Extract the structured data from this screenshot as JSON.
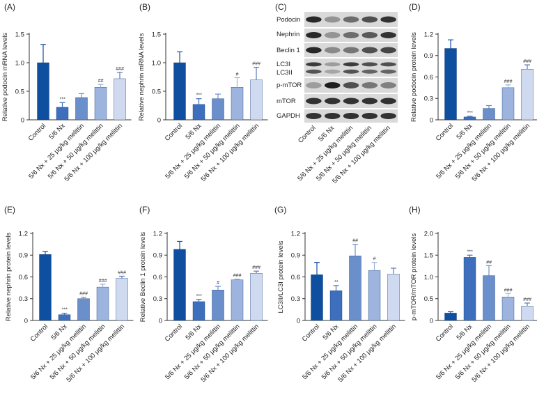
{
  "chart_data": [
    {
      "panel": "(A)",
      "type": "bar",
      "ylabel": "Relative podocin mRNA levels",
      "ylim": [
        0,
        1.5
      ],
      "yticks": [
        "0",
        "0.5",
        "1.0",
        "1.5"
      ],
      "categories": [
        "Control",
        "5/6 Nx",
        "5/6 Nx + 25 μg/kg melittin",
        "5/6 Nx + 50 μg/kg melittin",
        "5/6 Nx + 100 μg/kg melittin"
      ],
      "values": [
        1.0,
        0.22,
        0.39,
        0.57,
        0.72
      ],
      "errors": [
        0.32,
        0.08,
        0.07,
        0.05,
        0.11
      ],
      "significance": [
        "",
        "***",
        "",
        "##",
        "###"
      ],
      "colors": [
        "#0f4fa0",
        "#3e6fbd",
        "#6a8fcb",
        "#9cb4de",
        "#cfdaf0"
      ]
    },
    {
      "panel": "(B)",
      "type": "bar",
      "ylabel": "Relative nephrin mRNA levels",
      "ylim": [
        0,
        1.5
      ],
      "yticks": [
        "0",
        "0.5",
        "1.0",
        "1.5"
      ],
      "categories": [
        "Control",
        "5/6 Nx",
        "5/6 Nx + 25 μg/kg melittin",
        "5/6 Nx + 50 μg/kg melittin",
        "5/6 Nx + 100 μg/kg melittin"
      ],
      "values": [
        1.0,
        0.27,
        0.37,
        0.57,
        0.7
      ],
      "errors": [
        0.19,
        0.1,
        0.08,
        0.17,
        0.22
      ],
      "significance": [
        "",
        "***",
        "",
        "#",
        "###"
      ],
      "colors": [
        "#0f4fa0",
        "#3e6fbd",
        "#6a8fcb",
        "#9cb4de",
        "#cfdaf0"
      ]
    },
    {
      "panel": "(D)",
      "type": "bar",
      "ylabel": "Relative podocin protein levels",
      "ylim": [
        0,
        1.2
      ],
      "yticks": [
        "0",
        "0.3",
        "0.6",
        "0.9",
        "1.2"
      ],
      "categories": [
        "Control",
        "5/6 Nx",
        "5/6 Nx + 25 μg/kg melittin",
        "5/6 Nx + 50 μg/kg melittin",
        "5/6 Nx + 100 μg/kg melittin"
      ],
      "values": [
        1.0,
        0.04,
        0.16,
        0.45,
        0.71
      ],
      "errors": [
        0.12,
        0.01,
        0.04,
        0.04,
        0.06
      ],
      "significance": [
        "",
        "***",
        "",
        "###",
        "###"
      ],
      "colors": [
        "#0f4fa0",
        "#3e6fbd",
        "#6a8fcb",
        "#9cb4de",
        "#cfdaf0"
      ]
    },
    {
      "panel": "(E)",
      "type": "bar",
      "ylabel": "Relative nephrin protein levels",
      "ylim": [
        0,
        1.2
      ],
      "yticks": [
        "0",
        "0.3",
        "0.6",
        "0.9",
        "1.2"
      ],
      "categories": [
        "Control",
        "5/6 Nx",
        "5/6 Nx + 25 μg/kg melittin",
        "5/6 Nx + 50 μg/kg melittin",
        "5/6 Nx + 100 μg/kg melittin"
      ],
      "values": [
        0.91,
        0.08,
        0.3,
        0.46,
        0.58
      ],
      "errors": [
        0.04,
        0.02,
        0.02,
        0.04,
        0.03
      ],
      "significance": [
        "",
        "***",
        "###",
        "###",
        "###"
      ],
      "colors": [
        "#0f4fa0",
        "#3e6fbd",
        "#6a8fcb",
        "#9cb4de",
        "#cfdaf0"
      ]
    },
    {
      "panel": "(F)",
      "type": "bar",
      "ylabel": "Relative Beclin 1 protein levels",
      "ylim": [
        0,
        1.2
      ],
      "yticks": [
        "0",
        "0.3",
        "0.6",
        "0.9",
        "1.2"
      ],
      "categories": [
        "Control",
        "5/6 Nx",
        "5/6 Nx + 25 μg/kg melittin",
        "5/6 Nx + 50 μg/kg melittin",
        "5/6 Nx + 100 μg/kg melittin"
      ],
      "values": [
        0.98,
        0.26,
        0.42,
        0.56,
        0.65
      ],
      "errors": [
        0.11,
        0.03,
        0.05,
        0.01,
        0.03
      ],
      "significance": [
        "",
        "***",
        "#",
        "###",
        "###"
      ],
      "colors": [
        "#0f4fa0",
        "#3e6fbd",
        "#6a8fcb",
        "#9cb4de",
        "#cfdaf0"
      ]
    },
    {
      "panel": "(G)",
      "type": "bar",
      "ylabel": "LC3II/LC3I protein levels",
      "ylim": [
        0,
        1.2
      ],
      "yticks": [
        "0",
        "0.3",
        "0.6",
        "0.9",
        "1.2"
      ],
      "categories": [
        "Control",
        "5/6 Nx",
        "5/6 Nx + 25 μg/kg melittin",
        "5/6 Nx + 50 μg/kg melittin",
        "5/6 Nx + 100 μg/kg melittin"
      ],
      "values": [
        0.63,
        0.41,
        0.89,
        0.69,
        0.64
      ],
      "errors": [
        0.17,
        0.07,
        0.16,
        0.11,
        0.08
      ],
      "significance": [
        "",
        "**",
        "##",
        "#",
        ""
      ],
      "colors": [
        "#0f4fa0",
        "#3e6fbd",
        "#6a8fcb",
        "#9cb4de",
        "#cfdaf0"
      ]
    },
    {
      "panel": "(H)",
      "type": "bar",
      "ylabel": "p-mTOR/mTOR protein levels",
      "ylim": [
        0,
        2.0
      ],
      "yticks": [
        "0",
        "0.5",
        "1.0",
        "1.5",
        "2.0"
      ],
      "categories": [
        "Control",
        "5/6 Nx",
        "5/6 Nx + 25 μg/kg melittin",
        "5/6 Nx + 50 μg/kg melittin",
        "5/6 Nx + 100 μg/kg melittin"
      ],
      "values": [
        0.17,
        1.45,
        1.03,
        0.54,
        0.33
      ],
      "errors": [
        0.03,
        0.05,
        0.23,
        0.08,
        0.07
      ],
      "significance": [
        "",
        "***",
        "##",
        "###",
        "###"
      ],
      "colors": [
        "#0f4fa0",
        "#3e6fbd",
        "#6a8fcb",
        "#9cb4de",
        "#cfdaf0"
      ]
    }
  ],
  "blot": {
    "panel": "(C)",
    "rows": [
      "Podocin",
      "Nephrin",
      "Beclin 1",
      "LC3I",
      "LC3II",
      "p-mTOR",
      "mTOR",
      "GAPDH"
    ],
    "lanes": [
      "Control",
      "5/6 Nx",
      "5/6 Nx + 25 μg/kg melittin",
      "5/6 Nx + 50 μg/kg melittin",
      "5/6 Nx + 100 μg/kg melittin"
    ]
  }
}
